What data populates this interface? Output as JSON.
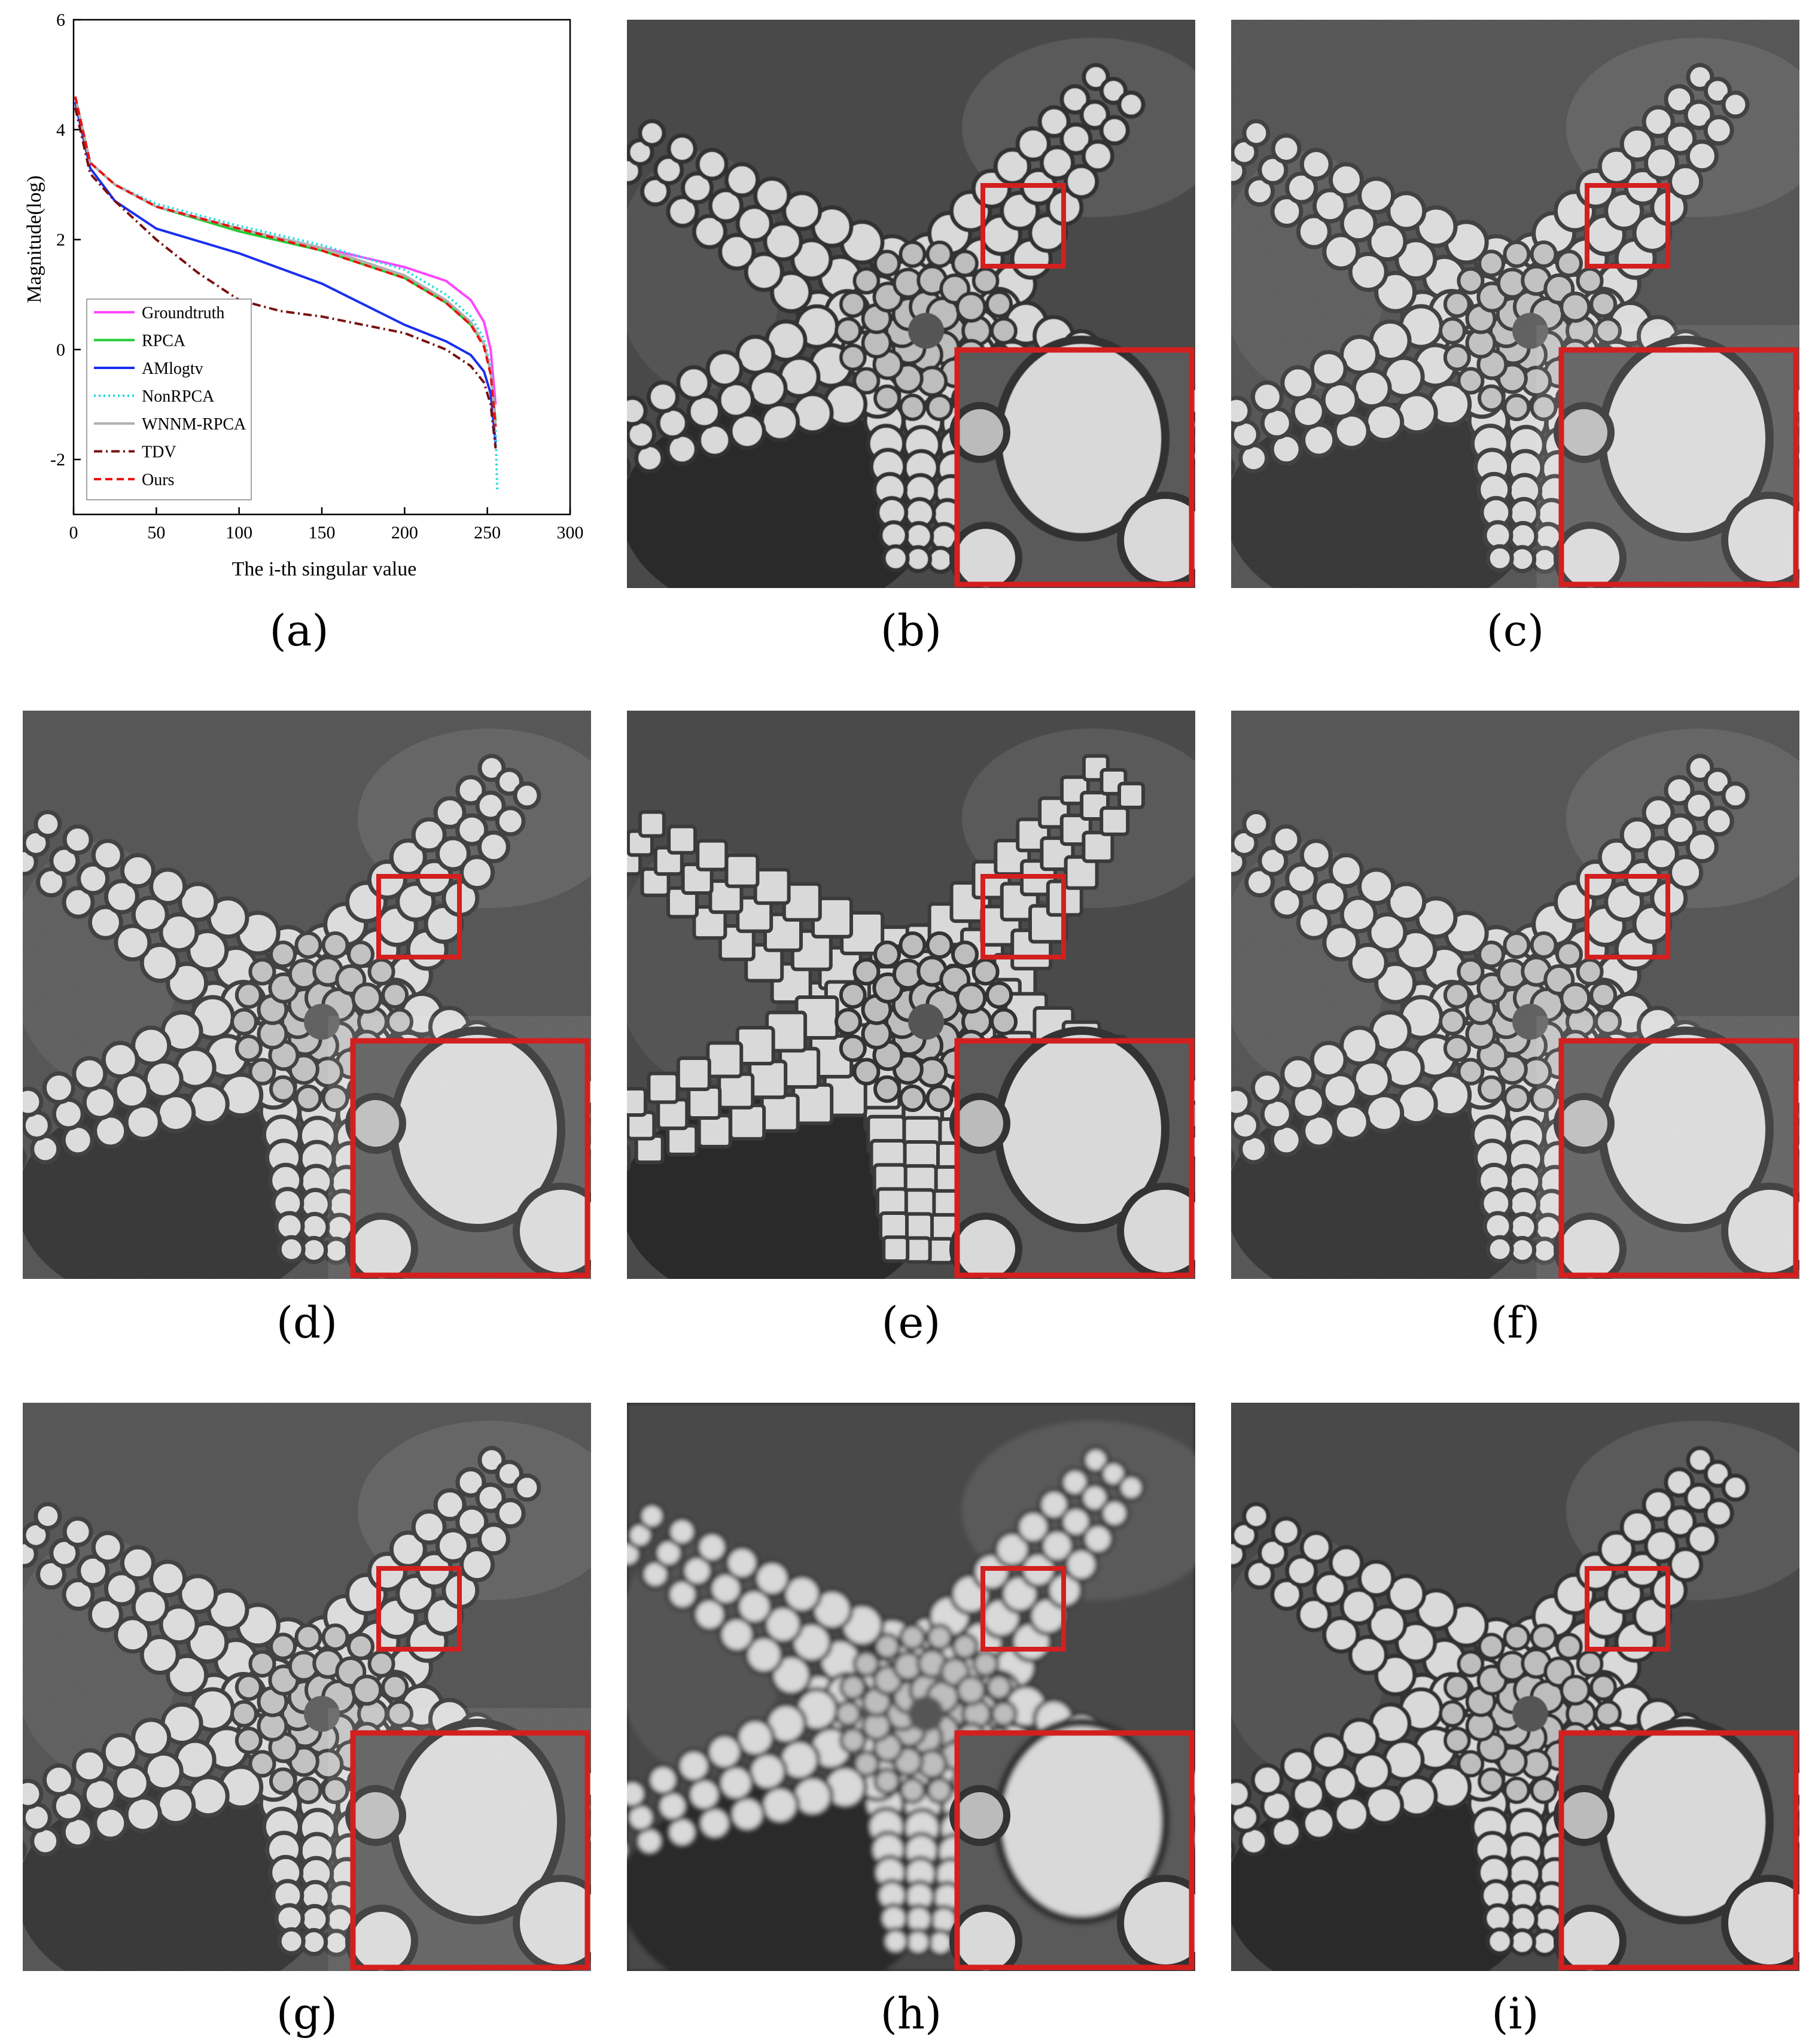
{
  "chart_data": {
    "type": "line",
    "xlabel": "The i-th singular value",
    "ylabel": "Magnitude(log)",
    "xlim": [
      0,
      300
    ],
    "ylim": [
      -3,
      6
    ],
    "xticks": [
      "0",
      "50",
      "100",
      "150",
      "200",
      "250",
      "300"
    ],
    "yticks": [
      "-2",
      "0",
      "2",
      "4",
      "6"
    ],
    "legend_position": "lower-left",
    "grid": false,
    "series": [
      {
        "name": "Groundtruth",
        "color": "#ff44ff",
        "dash": "solid",
        "x": [
          1,
          10,
          25,
          50,
          100,
          150,
          200,
          225,
          240,
          248,
          252,
          255
        ],
        "y": [
          4.6,
          3.4,
          3.0,
          2.6,
          2.2,
          1.85,
          1.5,
          1.25,
          0.9,
          0.5,
          0.0,
          -1.0
        ]
      },
      {
        "name": "RPCA",
        "color": "#22cc33",
        "dash": "solid",
        "x": [
          1,
          10,
          25,
          50,
          100,
          150,
          200,
          225,
          240,
          248,
          252,
          255
        ],
        "y": [
          4.6,
          3.4,
          3.0,
          2.6,
          2.15,
          1.8,
          1.3,
          0.85,
          0.45,
          0.1,
          -0.4,
          -1.3
        ]
      },
      {
        "name": "AMlogtv",
        "color": "#1a2ff0",
        "dash": "solid",
        "x": [
          1,
          10,
          25,
          50,
          100,
          150,
          200,
          225,
          240,
          248,
          252,
          255
        ],
        "y": [
          4.5,
          3.3,
          2.7,
          2.2,
          1.75,
          1.2,
          0.45,
          0.15,
          -0.1,
          -0.4,
          -0.8,
          -1.7
        ]
      },
      {
        "name": "NonRPCA",
        "color": "#22dddd",
        "dash": "dotted",
        "x": [
          1,
          10,
          25,
          50,
          100,
          150,
          200,
          225,
          240,
          248,
          252,
          255,
          256
        ],
        "y": [
          4.6,
          3.4,
          3.0,
          2.65,
          2.25,
          1.9,
          1.45,
          1.0,
          0.6,
          0.2,
          -0.3,
          -1.5,
          -2.6
        ]
      },
      {
        "name": "WNNM-RPCA",
        "color": "#b0b0b0",
        "dash": "solid",
        "x": [
          1,
          10,
          25,
          50,
          100,
          150,
          200,
          225,
          240,
          248,
          252,
          255
        ],
        "y": [
          4.6,
          3.4,
          3.0,
          2.6,
          2.2,
          1.85,
          1.35,
          0.9,
          0.5,
          0.1,
          -0.4,
          -1.4
        ]
      },
      {
        "name": "TDV",
        "color": "#7a1010",
        "dash": "dashdot",
        "x": [
          1,
          10,
          25,
          50,
          75,
          100,
          125,
          150,
          200,
          225,
          240,
          248,
          252,
          255
        ],
        "y": [
          4.4,
          3.2,
          2.7,
          2.0,
          1.4,
          0.9,
          0.7,
          0.6,
          0.3,
          0.0,
          -0.3,
          -0.6,
          -1.0,
          -1.8
        ]
      },
      {
        "name": "Ours",
        "color": "#ee1111",
        "dash": "dashed",
        "x": [
          1,
          10,
          25,
          50,
          100,
          150,
          200,
          225,
          240,
          248,
          252,
          255
        ],
        "y": [
          4.6,
          3.4,
          3.0,
          2.6,
          2.2,
          1.8,
          1.3,
          0.85,
          0.45,
          0.05,
          -0.45,
          -1.4
        ]
      }
    ]
  },
  "captions": {
    "a": "(a)",
    "b": "(b)",
    "c": "(c)",
    "d": "(d)",
    "e": "(e)",
    "f": "(f)",
    "g": "(g)",
    "h": "(h)",
    "i": "(i)"
  },
  "images": {
    "b": {
      "label": "b",
      "blur": 0.6,
      "noise": false,
      "blocky": false
    },
    "c": {
      "label": "c",
      "blur": 0,
      "noise": true,
      "blocky": false
    },
    "d": {
      "label": "d",
      "blur": 0,
      "noise": true,
      "blocky": false
    },
    "e": {
      "label": "e",
      "blur": 0,
      "noise": false,
      "blocky": true
    },
    "f": {
      "label": "f",
      "blur": 0,
      "noise": true,
      "blocky": false
    },
    "g": {
      "label": "g",
      "blur": 0,
      "noise": true,
      "blocky": false
    },
    "h": {
      "label": "h",
      "blur": 4,
      "noise": false,
      "blocky": false
    },
    "i": {
      "label": "i",
      "blur": 0.8,
      "noise": false,
      "blocky": false
    }
  },
  "colors": {
    "highlight_box": "#d41f1f",
    "star": "#d9d9d9",
    "background": "#4a4a4a"
  }
}
